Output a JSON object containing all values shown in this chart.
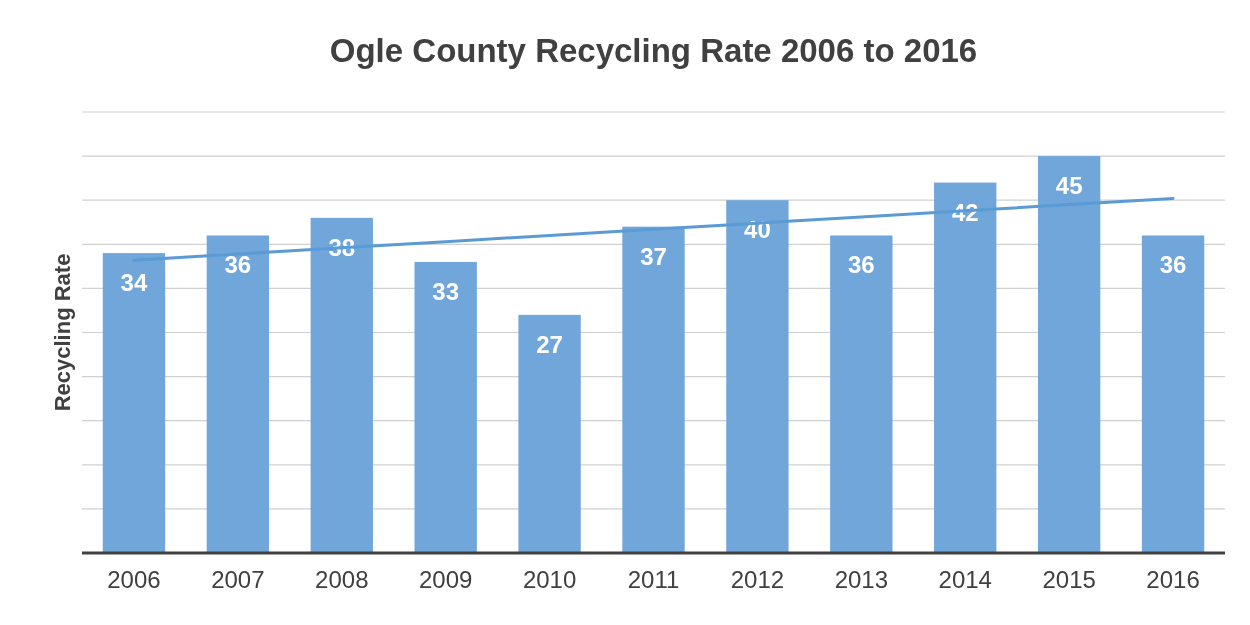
{
  "chart_data": {
    "type": "bar",
    "title": "Ogle County Recycling Rate 2006 to 2016",
    "ylabel": "Recycling Rate",
    "categories": [
      "2006",
      "2007",
      "2008",
      "2009",
      "2010",
      "2011",
      "2012",
      "2013",
      "2014",
      "2015",
      "2016"
    ],
    "series": [
      {
        "color": "#70a6da",
        "values": [
          34,
          36,
          38,
          33,
          27,
          37,
          40,
          36,
          42,
          45,
          36
        ],
        "value_labels": [
          "34",
          "36",
          "38",
          "33",
          "27",
          "37",
          "40",
          "36",
          "42",
          "45",
          "36"
        ]
      },
      {
        "type": "line",
        "color": "#5b9bd5",
        "values": [
          33.2,
          33.9,
          34.6,
          35.3,
          36.0,
          36.7,
          37.4,
          38.1,
          38.8,
          39.5,
          40.2
        ]
      }
    ],
    "ylim": [
      0,
      50
    ],
    "yticks": [
      {
        "value": 0,
        "label": null
      },
      {
        "value": 5,
        "label": null
      },
      {
        "value": 10,
        "label": null
      },
      {
        "value": 15,
        "label": null
      },
      {
        "value": 20,
        "label": null
      },
      {
        "value": 25,
        "label": null
      },
      {
        "value": 30,
        "label": null
      },
      {
        "value": 35,
        "label": null
      },
      {
        "value": 40,
        "label": null
      },
      {
        "value": 45,
        "label": null
      },
      {
        "value": 50,
        "label": null
      }
    ],
    "tick_labels": "x",
    "grid": "y"
  }
}
